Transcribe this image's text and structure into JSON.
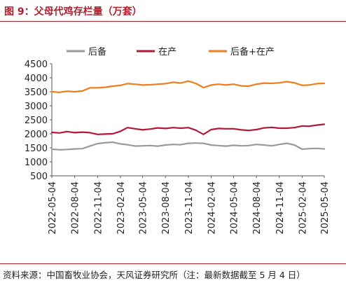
{
  "header": {
    "title": "图 9：父母代鸡存栏量（万套）"
  },
  "footer": {
    "source": "资料来源：中国畜牧业协会，天风证券研究所（注：最新数据截至 5 月 4 日）"
  },
  "colors": {
    "brand": "#b01f2e",
    "houbei": "#9a9a9a",
    "zaichan": "#b5173a",
    "total": "#ee7d1c"
  },
  "chart_data": {
    "type": "line",
    "title": "",
    "xlabel": "",
    "ylabel": "",
    "ylim": [
      500,
      4500
    ],
    "yticks": [
      500,
      1000,
      1500,
      2000,
      2500,
      3000,
      3500,
      4000,
      4500
    ],
    "xlim": [
      "2022-05-04",
      "2025-05-04"
    ],
    "xticks": [
      "2022-05-04",
      "2022-08-04",
      "2022-11-04",
      "2023-02-04",
      "2023-05-04",
      "2023-08-04",
      "2023-11-04",
      "2024-02-04",
      "2024-05-04",
      "2024-08-04",
      "2024-11-04",
      "2025-02-04",
      "2025-05-04"
    ],
    "grid": false,
    "legend_position": "top",
    "x": [
      "2022-05-04",
      "2022-06-04",
      "2022-07-04",
      "2022-08-04",
      "2022-09-04",
      "2022-10-04",
      "2022-11-04",
      "2022-12-04",
      "2023-01-04",
      "2023-02-04",
      "2023-03-04",
      "2023-04-04",
      "2023-05-04",
      "2023-06-04",
      "2023-07-04",
      "2023-08-04",
      "2023-09-04",
      "2023-10-04",
      "2023-11-04",
      "2023-12-04",
      "2024-01-04",
      "2024-02-04",
      "2024-03-04",
      "2024-04-04",
      "2024-05-04",
      "2024-06-04",
      "2024-07-04",
      "2024-08-04",
      "2024-09-04",
      "2024-10-04",
      "2024-11-04",
      "2024-12-04",
      "2025-01-04",
      "2025-02-04",
      "2025-03-04",
      "2025-04-04",
      "2025-05-04"
    ],
    "series": [
      {
        "name": "后备",
        "color": "#9a9a9a",
        "values": [
          1450,
          1430,
          1440,
          1460,
          1470,
          1560,
          1650,
          1680,
          1700,
          1640,
          1610,
          1560,
          1570,
          1580,
          1560,
          1600,
          1620,
          1610,
          1660,
          1670,
          1660,
          1600,
          1580,
          1560,
          1590,
          1570,
          1580,
          1620,
          1600,
          1570,
          1620,
          1660,
          1600,
          1450,
          1470,
          1480,
          1460
        ]
      },
      {
        "name": "在产",
        "color": "#b5173a",
        "values": [
          2050,
          2030,
          2080,
          2040,
          2060,
          2040,
          1980,
          1990,
          2000,
          2090,
          2220,
          2180,
          2140,
          2170,
          2210,
          2190,
          2220,
          2200,
          2220,
          2130,
          1980,
          2150,
          2190,
          2180,
          2180,
          2140,
          2120,
          2150,
          2210,
          2230,
          2200,
          2200,
          2220,
          2280,
          2270,
          2310,
          2340
        ]
      },
      {
        "name": "后备+在产",
        "color": "#ee7d1c",
        "values": [
          3500,
          3480,
          3520,
          3500,
          3530,
          3640,
          3640,
          3660,
          3700,
          3730,
          3790,
          3770,
          3740,
          3750,
          3770,
          3790,
          3840,
          3810,
          3880,
          3800,
          3650,
          3740,
          3770,
          3740,
          3770,
          3710,
          3700,
          3770,
          3810,
          3800,
          3820,
          3860,
          3820,
          3730,
          3740,
          3790,
          3800
        ]
      }
    ]
  }
}
